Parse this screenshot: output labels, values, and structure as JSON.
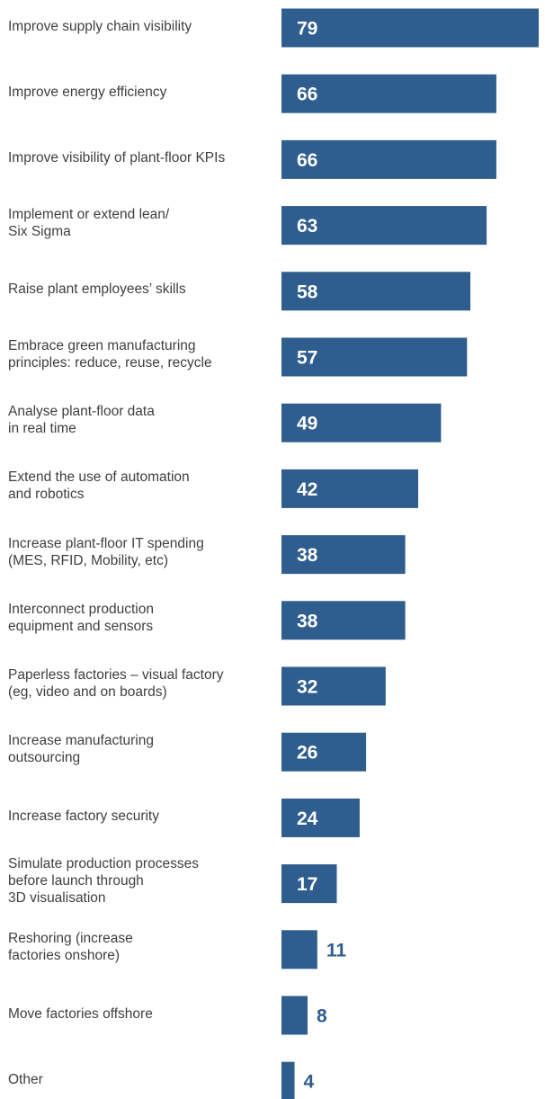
{
  "chart_data": {
    "type": "bar",
    "orientation": "horizontal",
    "categories": [
      "Improve supply chain visibility",
      "Improve energy efficiency",
      "Improve visibility of plant-floor KPIs",
      "Implement or extend lean/\nSix Sigma",
      "Raise plant employees’ skills",
      "Embrace green manufacturing\nprinciples: reduce, reuse, recycle",
      "Analyse plant-floor data\nin real time",
      "Extend the use of automation\nand robotics",
      "Increase plant-floor IT spending\n(MES, RFID, Mobility, etc)",
      "Interconnect production\nequipment and sensors",
      "Paperless factories – visual factory\n(eg, video and on boards)",
      "Increase manufacturing\noutsourcing",
      "Increase factory security",
      "Simulate production processes\nbefore launch through\n3D visualisation",
      "Reshoring (increase\nfactories onshore)",
      "Move factories offshore",
      "Other"
    ],
    "values": [
      79,
      66,
      66,
      63,
      58,
      57,
      49,
      42,
      38,
      38,
      32,
      26,
      24,
      17,
      11,
      8,
      4
    ],
    "value_labels": [
      "79",
      "66",
      "66",
      "63",
      "58",
      "57",
      "49",
      "42",
      "38",
      "38",
      "32",
      "26",
      "24",
      "17",
      "11",
      "8",
      "4"
    ],
    "xlim": [
      0,
      80
    ],
    "bar_color": "#2e5d8e",
    "inside_label_color": "#ffffff",
    "outside_label_color": "#2e5d8e",
    "label_text_color": "#3f3f3f",
    "grid": false,
    "legend": "none"
  }
}
